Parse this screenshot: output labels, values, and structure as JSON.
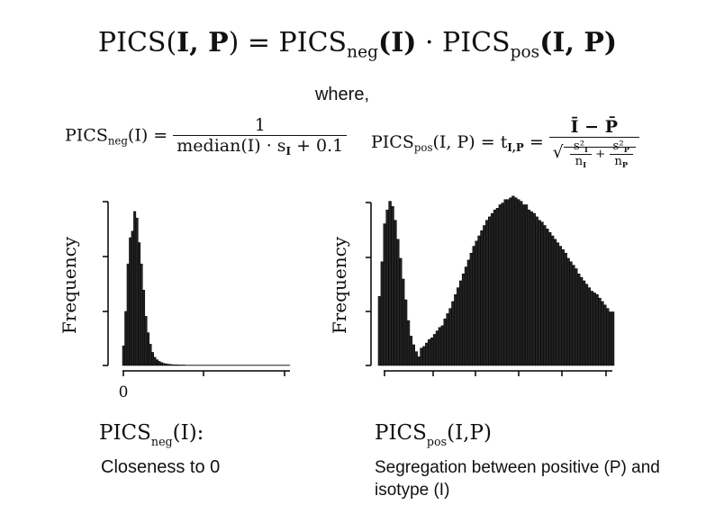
{
  "formulas": {
    "main": {
      "lhs": "PICS(",
      "args": "I, P",
      "eq": ") = PICS",
      "neg_sub": "neg",
      "neg_arg": "(I)",
      "dot": " · PICS",
      "pos_sub": "pos",
      "pos_arg": "(I, P)"
    },
    "where": "where,",
    "neg": {
      "name": "PICS",
      "sub": "neg",
      "arg": "(I) =",
      "numerator": "1",
      "denominator_text": "median(I) · s",
      "denominator_sub": "I",
      "denominator_tail": " + 0.1"
    },
    "pos": {
      "name": "PICS",
      "sub": "pos",
      "arg": "(I, P) = t",
      "t_sub": "I,P",
      "eq": " =",
      "numerator": "Ī − P̄",
      "var_i": "s²",
      "var_i_sub": "I",
      "n_i": "n",
      "n_i_sub": "I",
      "plus": "+",
      "var_p": "s²",
      "var_p_sub": "P",
      "n_p": "n",
      "n_p_sub": "P"
    }
  },
  "captions": {
    "neg": {
      "title_main": "PICS",
      "title_sub": "neg",
      "title_arg": "(I):",
      "desc": "Closeness to 0"
    },
    "pos": {
      "title_main": "PICS",
      "title_sub": "pos",
      "title_arg": "(I,P)",
      "desc": "Segregation between positive (P) and isotype (I)"
    }
  },
  "colors": {
    "bar_fill": "#222222",
    "bar_edge": "#000000",
    "axis": "#000000"
  },
  "chart_data": [
    {
      "type": "bar",
      "ylabel": "Frequency",
      "xlabel": "",
      "x_tick_label": "0",
      "values": [
        0.12,
        0.33,
        0.62,
        0.78,
        0.82,
        0.94,
        0.9,
        0.75,
        0.62,
        0.46,
        0.3,
        0.2,
        0.13,
        0.08,
        0.05,
        0.035,
        0.025,
        0.018,
        0.013,
        0.01,
        0.008,
        0.006,
        0.005,
        0.004,
        0.004,
        0.003,
        0.003,
        0.003,
        0.002,
        0.002,
        0.002,
        0.002,
        0.002,
        0.002,
        0.002,
        0.002,
        0.002,
        0.002,
        0.002,
        0.002,
        0.002,
        0.002,
        0.002,
        0.002,
        0.002,
        0.002,
        0.002,
        0.002,
        0.002,
        0.002,
        0.002,
        0.002,
        0.002,
        0.002,
        0.002,
        0.002,
        0.002,
        0.002,
        0.002,
        0.002,
        0.002,
        0.002,
        0.002,
        0.002,
        0.002,
        0.002,
        0.002,
        0.002,
        0.002,
        0.002,
        0.002,
        0.002,
        0.002,
        0.002,
        0.002
      ]
    },
    {
      "type": "bar",
      "ylabel": "Frequency",
      "xlabel": "",
      "values": [
        0.4,
        0.6,
        0.82,
        0.9,
        0.95,
        0.92,
        0.84,
        0.73,
        0.62,
        0.5,
        0.38,
        0.26,
        0.17,
        0.12,
        0.08,
        0.05,
        0.1,
        0.11,
        0.13,
        0.15,
        0.16,
        0.18,
        0.2,
        0.22,
        0.23,
        0.27,
        0.3,
        0.33,
        0.37,
        0.41,
        0.45,
        0.49,
        0.53,
        0.57,
        0.61,
        0.65,
        0.69,
        0.72,
        0.75,
        0.78,
        0.81,
        0.84,
        0.86,
        0.88,
        0.9,
        0.91,
        0.93,
        0.94,
        0.96,
        0.96,
        0.97,
        0.98,
        0.97,
        0.96,
        0.95,
        0.93,
        0.93,
        0.9,
        0.89,
        0.88,
        0.86,
        0.84,
        0.83,
        0.81,
        0.79,
        0.77,
        0.75,
        0.73,
        0.71,
        0.69,
        0.67,
        0.65,
        0.62,
        0.6,
        0.58,
        0.56,
        0.53,
        0.51,
        0.49,
        0.47,
        0.45,
        0.43,
        0.42,
        0.41,
        0.39,
        0.37,
        0.35,
        0.33,
        0.31,
        0.31
      ]
    }
  ]
}
